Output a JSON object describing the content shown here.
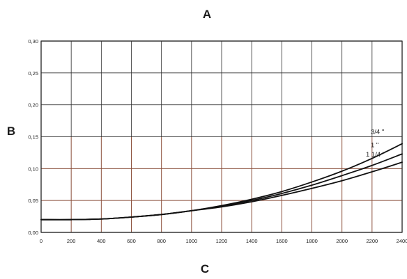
{
  "chart_data": {
    "type": "line",
    "title": "A",
    "xlabel": "C",
    "ylabel": "B",
    "xlim": [
      0,
      2400
    ],
    "ylim": [
      0,
      0.3
    ],
    "x_ticks": [
      "0",
      "200",
      "400",
      "600",
      "800",
      "1000",
      "1200",
      "1400",
      "1600",
      "1800",
      "2000",
      "2200",
      "2400"
    ],
    "y_ticks": [
      "0,00",
      "0,05",
      "0,10",
      "0,15",
      "0,20",
      "0,25",
      "0,30"
    ],
    "grid": true,
    "colors": {
      "grid": "#2a2a2a",
      "grid_highlight": "#8a4e3a",
      "line": "#111111"
    },
    "x": [
      0,
      200,
      400,
      600,
      800,
      1000,
      1200,
      1400,
      1600,
      1800,
      2000,
      2200,
      2400
    ],
    "series": [
      {
        "name": "3/4 \"",
        "values": [
          0.02,
          0.02,
          0.021,
          0.024,
          0.028,
          0.034,
          0.042,
          0.052,
          0.064,
          0.079,
          0.096,
          0.116,
          0.139
        ]
      },
      {
        "name": "1 \"",
        "values": [
          0.02,
          0.02,
          0.021,
          0.024,
          0.028,
          0.034,
          0.041,
          0.05,
          0.061,
          0.074,
          0.089,
          0.105,
          0.123
        ]
      },
      {
        "name": "1 1/4 \"",
        "values": [
          0.02,
          0.02,
          0.021,
          0.024,
          0.028,
          0.034,
          0.04,
          0.048,
          0.058,
          0.069,
          0.081,
          0.095,
          0.11
        ]
      }
    ]
  }
}
